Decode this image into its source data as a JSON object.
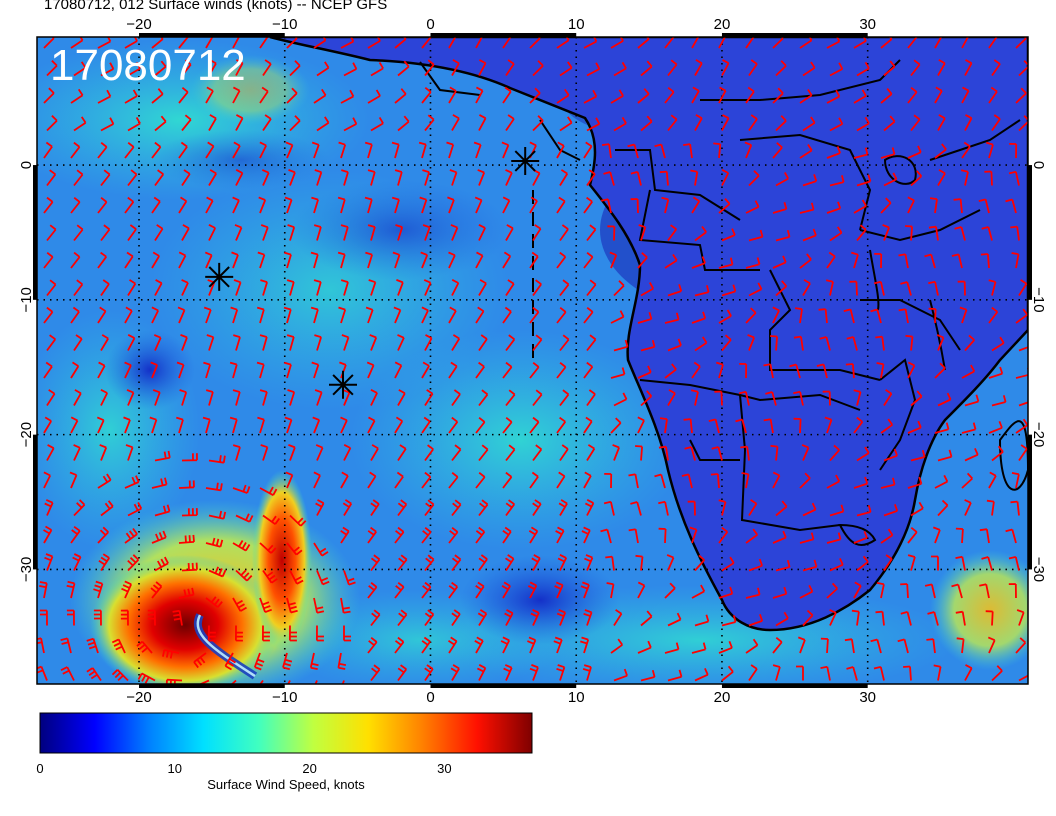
{
  "title": "17080712, 012 Surface winds (knots) -- NCEP GFS",
  "stamp": "17080712",
  "map": {
    "lon_range": [
      -27,
      41
    ],
    "lat_range": [
      -38.5,
      9.5
    ],
    "lon_ticks": [
      "−20",
      "−10",
      "0",
      "10",
      "20",
      "30"
    ],
    "lat_ticks": [
      "0",
      "−10",
      "−20",
      "−30"
    ],
    "grid_lon": [
      -20,
      -10,
      0,
      10,
      20,
      30
    ],
    "grid_lat": [
      0,
      -10,
      -20,
      -30
    ],
    "storm_markers": [
      {
        "lon": 6.5,
        "lat": 0.3
      },
      {
        "lon": -14.5,
        "lat": -8.3
      },
      {
        "lon": -6.0,
        "lat": -16.3
      }
    ],
    "barb_color": "#ff0000",
    "land_fill": "#2c3fd6",
    "ocean_fill": "#2f86e6",
    "border_color": "#000000"
  },
  "colorbar": {
    "ticks": [
      "0",
      "10",
      "20",
      "30"
    ],
    "values": [
      0,
      10,
      20,
      30
    ],
    "range": [
      0,
      36.5
    ],
    "label": "Surface Wind Speed, knots",
    "colors": [
      "#00007f",
      "#0000ff",
      "#0080ff",
      "#00e0ff",
      "#40ffc0",
      "#c0ff40",
      "#ffe000",
      "#ff8000",
      "#ff1000",
      "#7f0000"
    ]
  }
}
